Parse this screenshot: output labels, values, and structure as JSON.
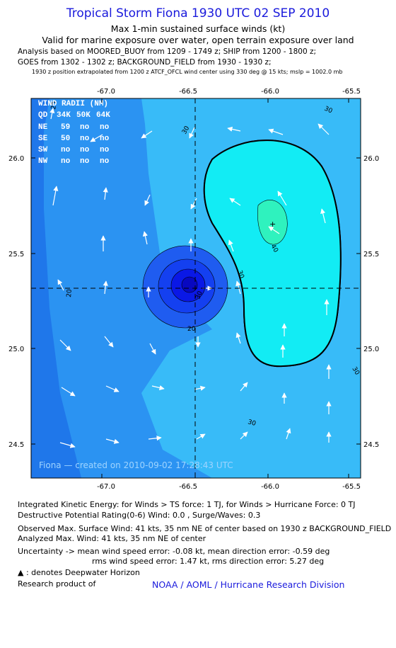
{
  "title": "Tropical Storm Fiona 1930 UTC 02 SEP 2010",
  "subtitle1": "Max 1-min sustained surface winds (kt)",
  "subtitle2": "Valid for marine exposure over water, open terrain exposure over land",
  "analysis_line1": "Analysis based on MOORED_BUOY from 1209 - 1749 z; SHIP from 1200 - 1800 z;",
  "analysis_line2": "GOES from 1302 - 1302 z; BACKGROUND_FIELD from 1930 - 1930 z;",
  "position_note": "1930 z position extrapolated from 1200 z ATCF_OFCL wind center using 330 deg @ 15 kts; mslp = 1002.0 mb",
  "map": {
    "lon_ticks": [
      "-67.0",
      "-66.5",
      "-66.0",
      "-65.5"
    ],
    "lat_ticks": [
      "26.0",
      "25.5",
      "25.0",
      "24.5"
    ],
    "credit": "Fiona — created on 2010-09-02 17:28:43 UTC",
    "contour_labels": [
      "20",
      "30",
      "40"
    ],
    "colors": {
      "c0": "#1f77ea",
      "c1": "#2b93f2",
      "c2": "#38bbf8",
      "c3": "#12ecf4",
      "c4": "#2ff2be",
      "v1": "#1f5cf0",
      "v2": "#1440f0",
      "v3": "#0a18e6",
      "eye": "#0808c0"
    },
    "wind_radii": {
      "title": "WIND RADII (NM)",
      "header": [
        "QD",
        "34K",
        "50K",
        "64K"
      ],
      "rows": [
        [
          "NE",
          "59",
          "no",
          "no"
        ],
        [
          "SE",
          "50",
          "no",
          "no"
        ],
        [
          "SW",
          "no",
          "no",
          "no"
        ],
        [
          "NW",
          "no",
          "no",
          "no"
        ]
      ]
    }
  },
  "ike_line": "Integrated Kinetic Energy:  for Winds > TS force: 1 TJ,  for Winds > Hurricane Force: 0 TJ",
  "dpr_line": "Destructive Potential Rating(0-6)   Wind: 0.0 , Surge/Waves: 0.3",
  "obs_max_line": "Observed Max. Surface Wind: 41 kts, 35 nm NE of center based on 1930 z BACKGROUND_FIELD",
  "analyzed_max_line": "Analyzed Max. Wind: 41 kts, 35 nm NE of center",
  "uncertainty_line1": "Uncertainty -> mean wind speed error:  -0.08 kt,   mean direction error:  -0.59 deg",
  "uncertainty_line2": "rms wind speed error: 1.47 kt,   rms direction error: 5.27 deg",
  "deepwater_legend": ": denotes Deepwater Horizon",
  "research_label": "Research product of",
  "noaa_label": "NOAA / AOML / Hurricane Research Division"
}
